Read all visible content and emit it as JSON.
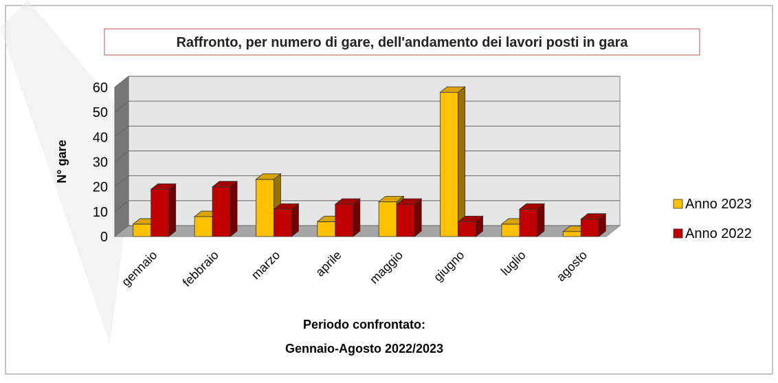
{
  "chart_data": {
    "type": "bar3d",
    "title": "Raffronto, per numero di gare, dell'andamento dei lavori posti in gara",
    "ylabel": "N° gare",
    "xlabel": [
      "Periodo confrontato:",
      "Gennaio-Agosto 2022/2023"
    ],
    "categories": [
      "gennaio",
      "febbraio",
      "marzo",
      "aprile",
      "maggio",
      "giugno",
      "luglio",
      "agosto"
    ],
    "series": [
      {
        "name": "Anno 2023",
        "color": "#ffc000",
        "values": [
          5,
          8,
          23,
          6,
          14,
          58,
          5,
          2
        ]
      },
      {
        "name": "Anno 2022",
        "color": "#c00000",
        "values": [
          19,
          20,
          11,
          13,
          13,
          6,
          11,
          7
        ]
      }
    ],
    "ylim": [
      0,
      60
    ],
    "yticks": [
      0,
      10,
      20,
      30,
      40,
      50,
      60
    ],
    "grid": true,
    "legend": "right"
  }
}
